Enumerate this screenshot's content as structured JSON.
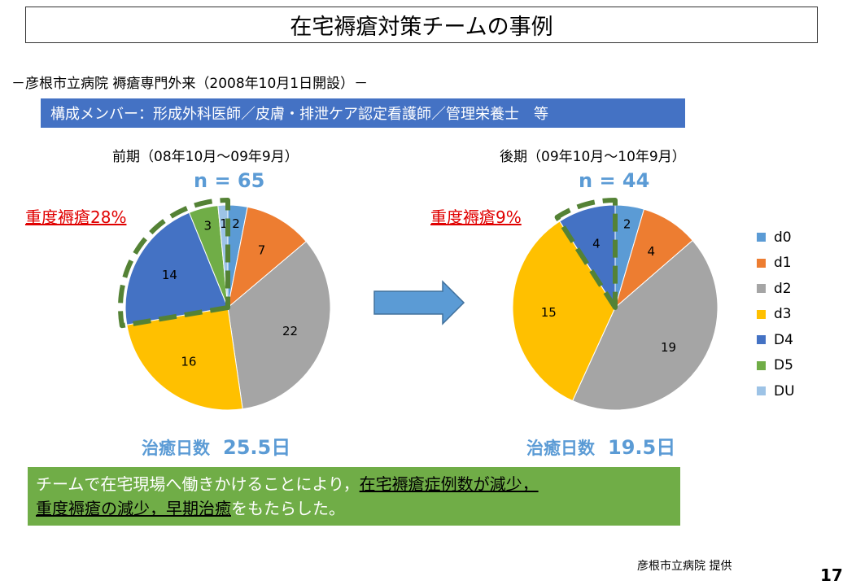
{
  "title": "在宅褥瘡対策チームの事例",
  "subtitle": "－彦根市立病院 褥瘡専門外来（2008年10月1日開設）－",
  "members": "構成メンバー：形成外科医師／皮膚・排泄ケア認定看護師／管理栄養士　等",
  "chart_data": [
    {
      "type": "pie",
      "period_label": "前期（08年10月～09年9月）",
      "n_label": "n = 65",
      "severe_label": "重度褥瘡28%",
      "healing_label": "治癒日数",
      "healing_value": "25.5日",
      "slices": [
        {
          "name": "d0",
          "value": 2,
          "color": "#5b9bd5"
        },
        {
          "name": "d1",
          "value": 7,
          "color": "#ed7d31"
        },
        {
          "name": "d2",
          "value": 22,
          "color": "#a5a5a5"
        },
        {
          "name": "d3",
          "value": 16,
          "color": "#ffc000"
        },
        {
          "name": "D4",
          "value": 14,
          "color": "#4472c4"
        },
        {
          "name": "D5",
          "value": 3,
          "color": "#70ad47"
        },
        {
          "name": "DU",
          "value": 1,
          "color": "#9dc3e6"
        }
      ],
      "highlight": [
        "D4",
        "D5",
        "DU"
      ]
    },
    {
      "type": "pie",
      "period_label": "後期（09年10月～10年9月）",
      "n_label": "n = 44",
      "severe_label": "重度褥瘡9%",
      "healing_label": "治癒日数",
      "healing_value": "19.5日",
      "slices": [
        {
          "name": "d0",
          "value": 2,
          "color": "#5b9bd5"
        },
        {
          "name": "d1",
          "value": 4,
          "color": "#ed7d31"
        },
        {
          "name": "d2",
          "value": 19,
          "color": "#a5a5a5"
        },
        {
          "name": "d3",
          "value": 15,
          "color": "#ffc000"
        },
        {
          "name": "D4",
          "value": 4,
          "color": "#4472c4"
        }
      ],
      "highlight": [
        "D4"
      ]
    }
  ],
  "legend": [
    {
      "name": "d0",
      "color": "#5b9bd5"
    },
    {
      "name": "d1",
      "color": "#ed7d31"
    },
    {
      "name": "d2",
      "color": "#a5a5a5"
    },
    {
      "name": "d3",
      "color": "#ffc000"
    },
    {
      "name": "D4",
      "color": "#4472c4"
    },
    {
      "name": "D5",
      "color": "#70ad47"
    },
    {
      "name": "DU",
      "color": "#9dc3e6"
    }
  ],
  "conclusion": {
    "part1": "チームで在宅現場へ働きかけることにより，",
    "part2": "在宅褥瘡症例数が減少，",
    "part3": "重度褥瘡の減少，早期治癒",
    "part4": "をもたらした。"
  },
  "credit": "彦根市立病院 提供",
  "page_number": "17"
}
